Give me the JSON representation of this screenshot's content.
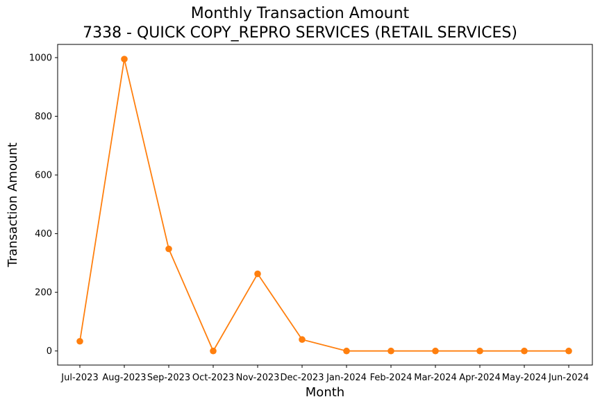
{
  "chart_data": {
    "type": "line",
    "title": "Monthly Transaction Amount",
    "subtitle": "7338 - QUICK COPY_REPRO SERVICES (RETAIL SERVICES)",
    "xlabel": "Month",
    "ylabel": "Transaction Amount",
    "categories": [
      "Jul-2023",
      "Aug-2023",
      "Sep-2023",
      "Oct-2023",
      "Nov-2023",
      "Dec-2023",
      "Jan-2024",
      "Feb-2024",
      "Mar-2024",
      "Apr-2024",
      "May-2024",
      "Jun-2024"
    ],
    "values": [
      33,
      995,
      348,
      0,
      263,
      39,
      0,
      0,
      0,
      0,
      0,
      0
    ],
    "ylim": [
      -48,
      1045
    ],
    "yticks": [
      0,
      200,
      400,
      600,
      800,
      1000
    ],
    "grid": false,
    "color": "#ff7f0e"
  }
}
